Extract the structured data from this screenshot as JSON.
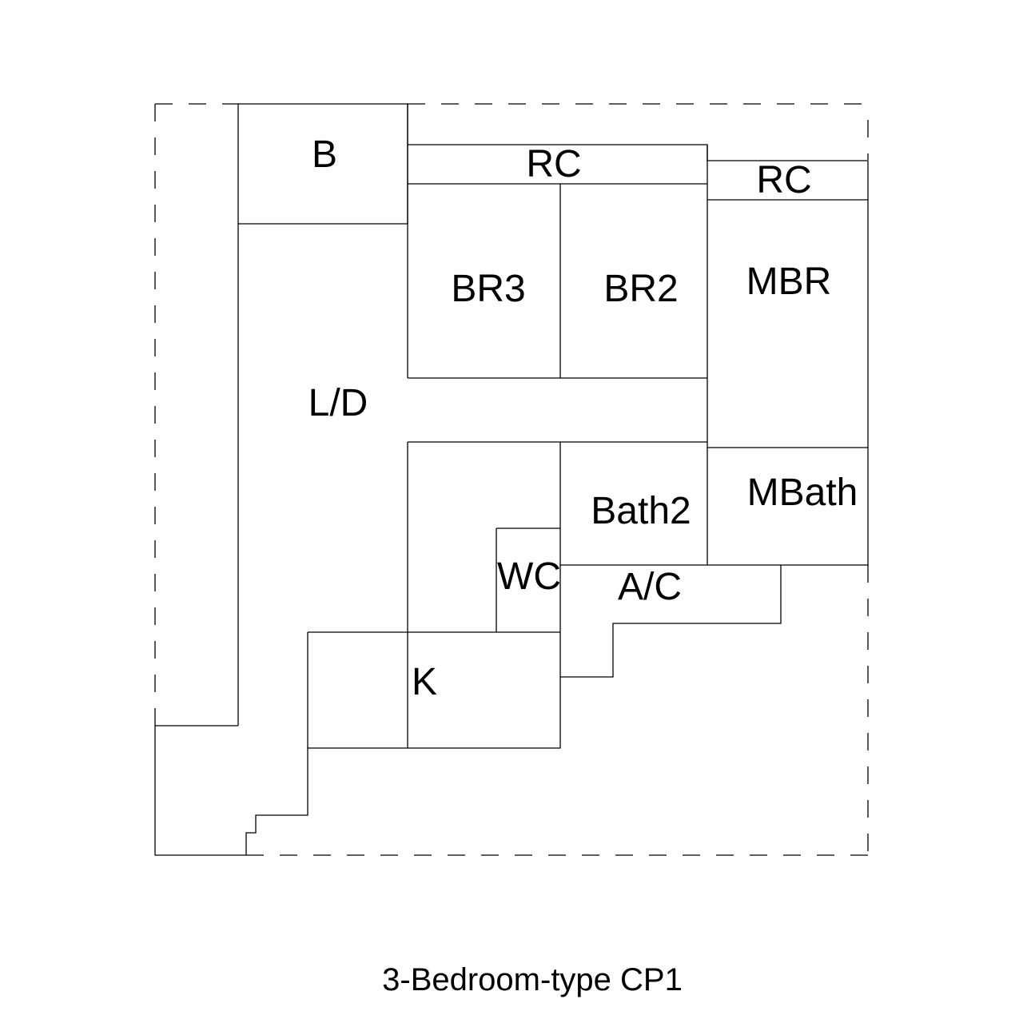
{
  "colors": {
    "line": "#000000",
    "background": "#ffffff"
  },
  "rooms": {
    "b": "B",
    "rc_top": "RC",
    "rc_right": "RC",
    "br3": "BR3",
    "br2": "BR2",
    "mbr": "MBR",
    "ld": "L/D",
    "bath2": "Bath2",
    "mbath": "MBath",
    "wc": "WC",
    "ac": "A/C",
    "k": "K"
  },
  "caption": "3-Bedroom-type CP1"
}
